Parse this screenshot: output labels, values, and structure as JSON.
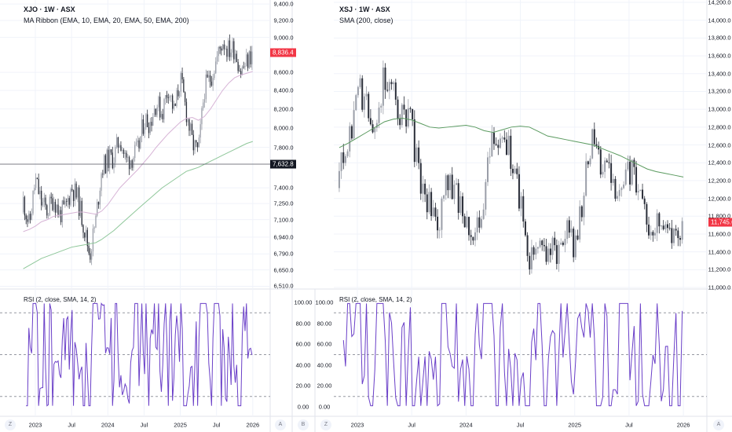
{
  "left": {
    "title": "XJO · 1W · ASX",
    "indicator": "MA Ribbon (EMA, 10, EMA, 20, EMA, 50, EMA, 200)",
    "rsi_label": "RSI (2, close, SMA, 14, 2)",
    "last_price": "8,836.4",
    "marked_price": "7,632.8",
    "buttons": {
      "z": "Z",
      "a": "A",
      "b": "B"
    }
  },
  "right": {
    "title": "XSJ · 1W · ASX",
    "indicator": "SMA (200, close)",
    "rsi_label": "RSI (2, close, SMA, 14, 2)",
    "last_price": "11,745.6",
    "buttons": {
      "z": "Z",
      "a": "A"
    }
  },
  "colors": {
    "up": "#9a9ea8",
    "down": "#2a2e39",
    "ma50": "#d7b4d6",
    "ma200": "#8fc79a",
    "sma200": "#5a9a5f",
    "rsi": "#6a3fc8",
    "last": "#f23645",
    "marked": "#131722"
  },
  "chart_data": [
    {
      "type": "candlestick",
      "title": "XJO · 1W · ASX",
      "scale": "log",
      "ylim": [
        6500,
        9420
      ],
      "yticks": [
        "9,400.0",
        "9,200.0",
        "9,000.0",
        "8,600.0",
        "8,400.0",
        "8,200.0",
        "8,000.0",
        "7,800.0",
        "7,400.0",
        "7,250.0",
        "7,100.0",
        "6,940.0",
        "6,790.0",
        "6,650.0",
        "6,510.0"
      ],
      "ytick_values": [
        9400,
        9200,
        9000,
        8600,
        8400,
        8200,
        8000,
        7800,
        7400,
        7250,
        7100,
        6940,
        6790,
        6650,
        6510
      ],
      "xticks": [
        "2023",
        "Jul",
        "2024",
        "Jul",
        "2025",
        "Jul",
        "2026"
      ],
      "start": "2022-11",
      "monthly_close": [
        7280,
        7040,
        7480,
        7260,
        7180,
        7310,
        7150,
        7200,
        7410,
        7300,
        7050,
        6780,
        7090,
        7590,
        7680,
        7700,
        7900,
        7660,
        7700,
        7770,
        8090,
        8060,
        8270,
        8160,
        8440,
        8160,
        8530,
        8170,
        7840,
        7740,
        8420,
        8540,
        8740,
        8970,
        8850,
        8880,
        8610,
        8710,
        8836
      ],
      "ma50": [
        6990,
        7010,
        7040,
        7080,
        7100,
        7130,
        7140,
        7150,
        7160,
        7170,
        7170,
        7160,
        7150,
        7180,
        7240,
        7320,
        7400,
        7460,
        7520,
        7580,
        7650,
        7720,
        7800,
        7870,
        7940,
        8000,
        8060,
        8100,
        8110,
        8080,
        8120,
        8200,
        8300,
        8400,
        8480,
        8540,
        8570,
        8590,
        8610
      ],
      "ma200": [
        6660,
        6690,
        6720,
        6750,
        6770,
        6790,
        6810,
        6830,
        6850,
        6860,
        6870,
        6880,
        6890,
        6920,
        6960,
        7000,
        7050,
        7100,
        7150,
        7200,
        7250,
        7300,
        7350,
        7400,
        7440,
        7480,
        7520,
        7560,
        7580,
        7600,
        7630,
        7660,
        7690,
        7720,
        7750,
        7780,
        7810,
        7840,
        7860
      ],
      "rsi_ylim": [
        0,
        100
      ],
      "rsi_yticks": [
        "100.00",
        "80.00",
        "60.00",
        "40.00",
        "20.00",
        "0.00"
      ],
      "rsi_levels": [
        90,
        50,
        10
      ]
    },
    {
      "type": "candlestick",
      "title": "XSJ · 1W · ASX",
      "scale": "linear",
      "ylim": [
        11000,
        14200
      ],
      "yticks": [
        "14,200.0",
        "14,000.0",
        "13,800.0",
        "13,600.0",
        "13,400.0",
        "13,200.0",
        "13,000.0",
        "12,800.0",
        "12,600.0",
        "12,400.0",
        "12,200.0",
        "12,000.0",
        "11,800.0",
        "11,600.0",
        "11,400.0",
        "11,200.0",
        "11,000.0"
      ],
      "ytick_values": [
        14200,
        14000,
        13800,
        13600,
        13400,
        13200,
        13000,
        12800,
        12600,
        12400,
        12200,
        12000,
        11800,
        11600,
        11400,
        11200,
        11000
      ],
      "xticks": [
        "2023",
        "Jul",
        "2024",
        "Jul",
        "2025",
        "Jul",
        "2026"
      ],
      "start": "2022-11",
      "monthly_close": [
        12300,
        12500,
        13300,
        13000,
        12900,
        13400,
        13200,
        12900,
        12800,
        12100,
        11900,
        11700,
        12200,
        12000,
        11800,
        11550,
        12000,
        12700,
        12800,
        12400,
        12000,
        11300,
        11500,
        11450,
        11400,
        11700,
        11400,
        12100,
        12700,
        12400,
        12300,
        11950,
        12300,
        12200,
        11600,
        11700,
        11600,
        11550,
        11745
      ],
      "sma200": [
        12570,
        12620,
        12680,
        12740,
        12800,
        12860,
        12890,
        12900,
        12880,
        12840,
        12800,
        12790,
        12800,
        12810,
        12820,
        12800,
        12760,
        12740,
        12770,
        12800,
        12810,
        12800,
        12750,
        12700,
        12680,
        12660,
        12640,
        12620,
        12600,
        12560,
        12520,
        12480,
        12430,
        12380,
        12330,
        12300,
        12280,
        12260,
        12240
      ],
      "rsi_ylim": [
        0,
        100
      ],
      "rsi_yticks": [
        "100.00",
        "80.00",
        "60.00",
        "40.00",
        "20.00",
        "0.00"
      ],
      "rsi_levels": [
        90,
        50,
        10
      ]
    }
  ]
}
